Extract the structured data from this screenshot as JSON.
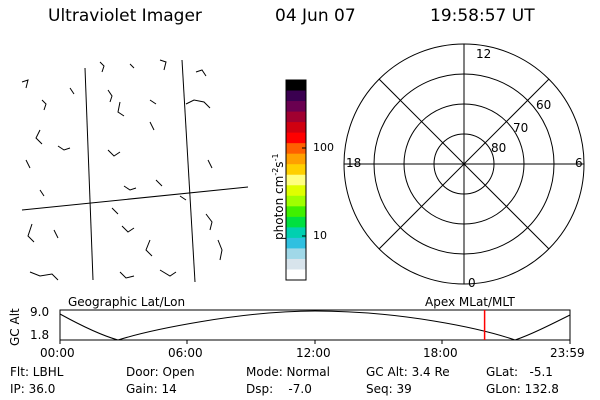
{
  "header": {
    "title": "Ultraviolet Imager",
    "date": "04 Jun 07",
    "time": "19:58:57 UT"
  },
  "colorbar": {
    "label_main": "photon cm",
    "label_sup1": "-2",
    "label_mid": "s",
    "label_sup2": "-1",
    "ticks": [
      "100",
      "10"
    ],
    "colors": [
      "#000000",
      "#3a0050",
      "#6a0050",
      "#a00030",
      "#d00010",
      "#ff0000",
      "#ff6000",
      "#ffa000",
      "#ffd000",
      "#ffff80",
      "#e0ff00",
      "#a0ff00",
      "#40f000",
      "#00e040",
      "#00d0b0",
      "#30c0e0",
      "#a0d8e8",
      "#d8e4ec",
      "#ffffff"
    ]
  },
  "polar_plot": {
    "labels_mlt": [
      "12",
      "18",
      "6",
      "0"
    ],
    "labels_lat": [
      "60",
      "70",
      "80"
    ]
  },
  "map": {
    "label_left": "Geographic Lat/Lon",
    "label_right": "Apex MLat/MLT"
  },
  "altitude_strip": {
    "ylabel": "GC Alt",
    "y_ticks": [
      "9.0",
      "1.8"
    ],
    "x_ticks": [
      "00:00",
      "06:00",
      "12:00",
      "18:00",
      "23:59"
    ],
    "current_marker_hour": 19.98
  },
  "info": {
    "row1": [
      "Flt: LBHL",
      "Door: Open",
      "Mode: Normal",
      "GC Alt: 3.4 Re",
      "GLat:   -5.1"
    ],
    "row2": [
      "IP: 36.0",
      "Gain: 14",
      "Dsp:    -7.0",
      "Seq: 39",
      "GLon: 132.8"
    ]
  },
  "colors": {
    "marker": "#ff0000",
    "line": "#000000"
  }
}
